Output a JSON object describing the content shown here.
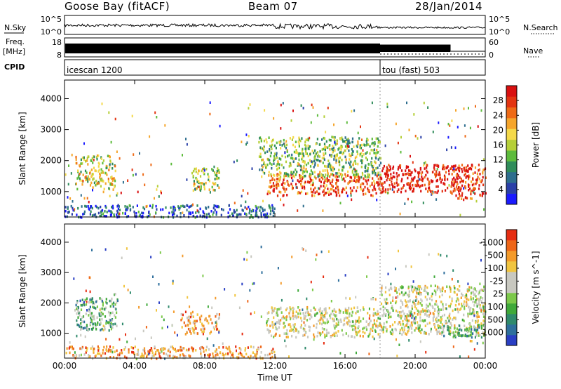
{
  "header": {
    "station": "Goose Bay (fitACF)",
    "beam": "Beam 07",
    "date": "28/Jan/2014"
  },
  "status_panels": {
    "nsky_label": "N.Sky",
    "nsky_ticks": [
      "10^5",
      "10^0"
    ],
    "nsearch_label": "N.Search",
    "nsearch_ticks": [
      "10^5",
      "10^0"
    ],
    "freq_label": "Freq.",
    "freq_unit": "[MHz]",
    "freq_ticks": [
      "18",
      "8"
    ],
    "nave_label": "Nave",
    "nave_ticks": [
      "60",
      "0"
    ],
    "cpid_label": "CPID",
    "cpid_segments": [
      {
        "name": "icescan 1200",
        "start_h": 0,
        "end_h": 18
      },
      {
        "name": "tou (fast) 503",
        "start_h": 18,
        "end_h": 24
      }
    ]
  },
  "chart_data": [
    {
      "type": "heatmap",
      "panel": "power",
      "ylabel": "Slant Range [km]",
      "ylim": [
        180,
        4600
      ],
      "yticks": [
        1000,
        2000,
        3000,
        4000
      ],
      "colorbar_label": "Power [dB]",
      "colorbar_ticks": [
        "4",
        "8",
        "12",
        "16",
        "20",
        "24",
        "28"
      ],
      "colorbar_colors": [
        "#1a1aff",
        "#2a40a8",
        "#2e6e8e",
        "#2f8c5a",
        "#5dbb3c",
        "#b5cf38",
        "#f4d94a",
        "#f5a52b",
        "#ee6a16",
        "#e33411",
        "#d91010"
      ],
      "series": [
        {
          "time_h": [
            0.6,
            2.9
          ],
          "range_km": [
            1100,
            2200
          ],
          "level": 0.55
        },
        {
          "time_h": [
            7.3,
            8.8
          ],
          "range_km": [
            1050,
            1800
          ],
          "level": 0.5
        },
        {
          "time_h": [
            11.5,
            18.0
          ],
          "range_km": [
            900,
            1600
          ],
          "level": 0.82
        },
        {
          "time_h": [
            11.0,
            18.0
          ],
          "range_km": [
            1500,
            2800
          ],
          "level": 0.45
        },
        {
          "time_h": [
            18.0,
            22.8
          ],
          "range_km": [
            1000,
            1900
          ],
          "level": 0.95
        },
        {
          "time_h": [
            22.0,
            24.0
          ],
          "range_km": [
            800,
            1900
          ],
          "level": 0.88
        },
        {
          "time_h": [
            0,
            12
          ],
          "range_km": [
            200,
            600
          ],
          "level": 0.2
        }
      ]
    },
    {
      "type": "heatmap",
      "panel": "velocity",
      "xlabel": "Time UT",
      "ylabel": "Slant Range [km]",
      "ylim": [
        180,
        4600
      ],
      "yticks": [
        1000,
        2000,
        3000,
        4000
      ],
      "xticks": [
        "00:00",
        "04:00",
        "08:00",
        "12:00",
        "16:00",
        "20:00",
        "00:00"
      ],
      "colorbar_label": "Velocity [m s^-1]",
      "colorbar_ticks": [
        "1000",
        "500",
        "100",
        "25",
        "-25",
        "-100",
        "-500",
        "-1000"
      ],
      "colorbar_colors": [
        "#2a3fc4",
        "#2e6f9c",
        "#2f8a6c",
        "#3fa93a",
        "#7cc94a",
        "#c8c8c0",
        "#c8c8c0",
        "#f1c540",
        "#f39a2a",
        "#ee6618",
        "#e62d12"
      ],
      "series": [
        {
          "time_h": [
            0.6,
            3.0
          ],
          "range_km": [
            1100,
            2200
          ],
          "level": 0.35
        },
        {
          "time_h": [
            6.6,
            8.8
          ],
          "range_km": [
            1000,
            1700
          ],
          "level": 0.72
        },
        {
          "time_h": [
            11.5,
            18.0
          ],
          "range_km": [
            900,
            1900
          ],
          "level": 0.58
        },
        {
          "time_h": [
            18.0,
            24.0
          ],
          "range_km": [
            1000,
            2600
          ],
          "level": 0.55
        },
        {
          "time_h": [
            21.5,
            24.0
          ],
          "range_km": [
            900,
            1300
          ],
          "level": 0.3
        },
        {
          "time_h": [
            0,
            12
          ],
          "range_km": [
            200,
            600
          ],
          "level": 0.75
        }
      ]
    }
  ]
}
